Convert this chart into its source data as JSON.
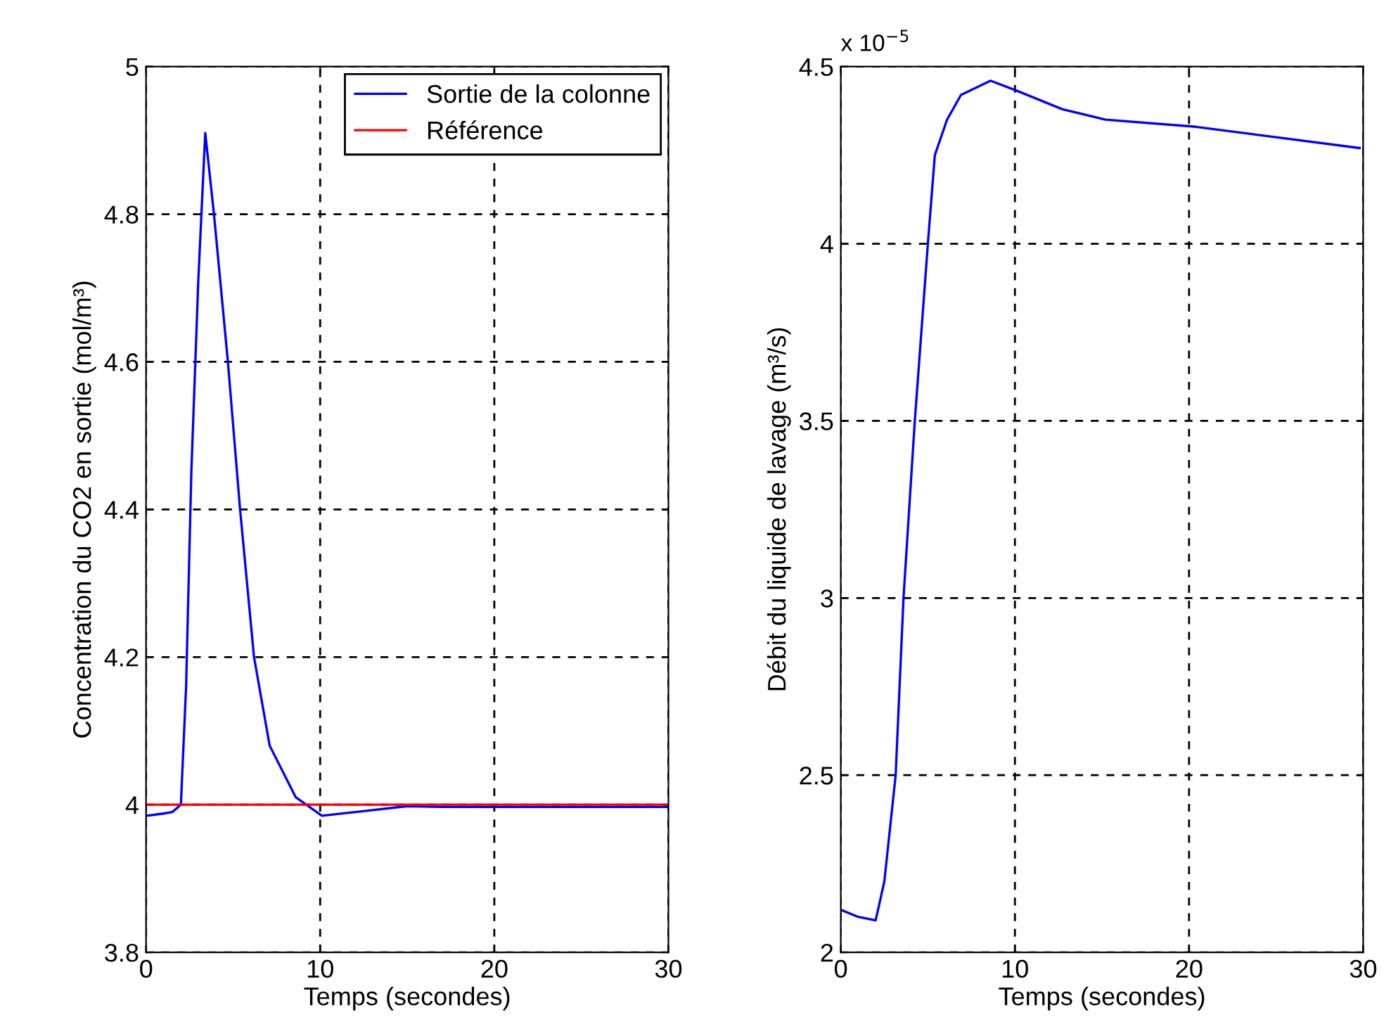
{
  "chart_data": [
    {
      "type": "line",
      "xlabel": "Temps (secondes)",
      "ylabel": "Concentration du CO2 en sortie (mol/m³)",
      "xlim": [
        0,
        30
      ],
      "xticks": [
        0,
        10,
        20,
        30
      ],
      "ylim": [
        3.8,
        5
      ],
      "yticks": [
        3.8,
        4,
        4.2,
        4.4,
        4.6,
        4.8,
        5
      ],
      "grid": true,
      "legend": "top right",
      "line_style": "solid",
      "series": [
        {
          "name": "Sortie de la colonne",
          "color": "#0000ff",
          "x": [
            0,
            1,
            1.5,
            2,
            2.3,
            2.6,
            3.0,
            3.4,
            3.9,
            4.7,
            5.4,
            6.2,
            7.1,
            8.6,
            10.1,
            12,
            15,
            17,
            20,
            25,
            30
          ],
          "values": [
            3.985,
            3.988,
            3.99,
            4.0,
            4.16,
            4.45,
            4.71,
            4.91,
            4.8,
            4.6,
            4.4,
            4.2,
            4.08,
            4.01,
            3.985,
            3.99,
            3.998,
            3.997,
            3.997,
            3.997,
            3.997
          ]
        },
        {
          "name": "Référence",
          "color": "#ff0000",
          "x": [
            0,
            30
          ],
          "values": [
            4,
            4
          ]
        }
      ]
    },
    {
      "type": "line",
      "xlabel": "Temps (secondes)",
      "ylabel": "Débit du liquide de lavage (m³/s)",
      "xlim": [
        0,
        30
      ],
      "xticks": [
        0,
        10,
        20,
        30
      ],
      "ylim": [
        2,
        4.5
      ],
      "yticks": [
        2,
        2.5,
        3,
        3.5,
        4,
        4.5
      ],
      "grid": true,
      "line_style": "solid",
      "annotations": [
        "x 10$^{−5}$"
      ],
      "series": [
        {
          "color": "#0000ff",
          "x": [
            0,
            1,
            2,
            2.5,
            3.15,
            3.6,
            4.25,
            5.0,
            5.4,
            6.1,
            6.9,
            8.6,
            10.2,
            12.7,
            15.2,
            20.4,
            29.8
          ],
          "values": [
            2.12,
            2.1,
            2.09,
            2.2,
            2.5,
            3.0,
            3.5,
            4.0,
            4.25,
            4.35,
            4.42,
            4.46,
            4.43,
            4.38,
            4.35,
            4.33,
            4.27
          ]
        }
      ]
    }
  ]
}
